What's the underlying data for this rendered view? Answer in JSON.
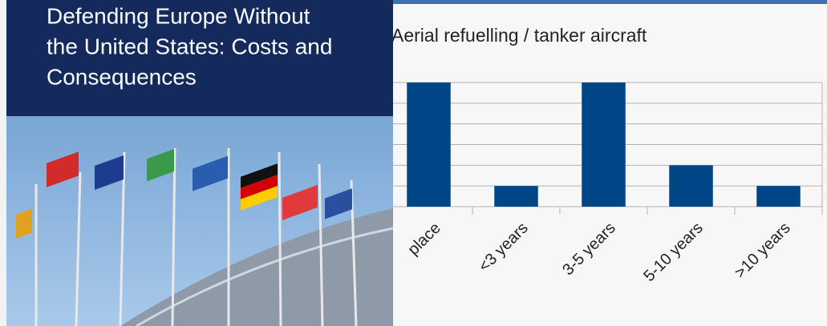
{
  "cover": {
    "title_lines": [
      "Defending Europe Without",
      "the United States: Costs and",
      "Consequences"
    ]
  },
  "chart_data": {
    "type": "bar",
    "title": "Aerial refuelling / tanker aircraft",
    "categories": [
      "place",
      "<3 years",
      "3-5 years",
      "5-10 years",
      ">10 years"
    ],
    "values": [
      6,
      1,
      6,
      2,
      1
    ],
    "color": "#004586",
    "ylim": [
      0,
      6
    ],
    "yticks": [
      0,
      1,
      2,
      3,
      4,
      5,
      6
    ],
    "grid": true
  }
}
